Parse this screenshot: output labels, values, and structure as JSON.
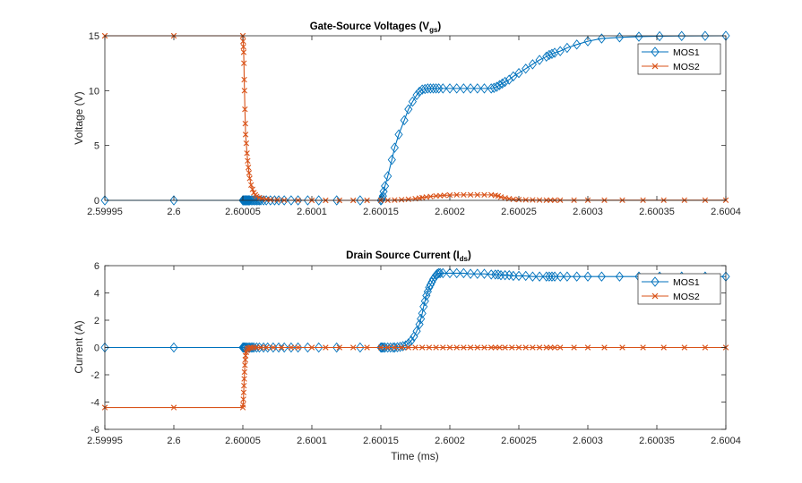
{
  "colors": {
    "mos1": "#0072BD",
    "mos2": "#D95319",
    "axis": "#262626"
  },
  "chart_data": [
    {
      "type": "line",
      "title": "Gate-Source  Voltages  (V",
      "title_sub": "gs",
      "title_end": ")",
      "xlabel": "",
      "ylabel": "Voltage (V)",
      "xlim": [
        2.59995,
        2.6004
      ],
      "ylim": [
        0,
        15
      ],
      "xticks": [
        2.59995,
        2.6,
        2.60005,
        2.6001,
        2.60015,
        2.6002,
        2.60025,
        2.6003,
        2.60035,
        2.6004
      ],
      "xtick_labels": [
        "2.59995",
        "2.6",
        "2.60005",
        "2.6001",
        "2.60015",
        "2.6002",
        "2.60025",
        "2.6003",
        "2.60035",
        "2.6004"
      ],
      "yticks": [
        0,
        5,
        10,
        15
      ],
      "ytick_labels": [
        "0",
        "5",
        "10",
        "15"
      ],
      "grid": false,
      "legend": "top-right",
      "series": [
        {
          "name": "MOS1",
          "marker": "diamond",
          "x": [
            2.59995,
            2.6,
            2.60005,
            2.6000505,
            2.600051,
            2.6000515,
            2.600052,
            2.6000525,
            2.600053,
            2.6000535,
            2.600054,
            2.6000545,
            2.600055,
            2.600056,
            2.600057,
            2.600058,
            2.600059,
            2.60006,
            2.600061,
            2.600062,
            2.600063,
            2.600065,
            2.600067,
            2.60007,
            2.600073,
            2.600076,
            2.60008,
            2.600085,
            2.60009,
            2.600097,
            2.600105,
            2.600118,
            2.600135,
            2.60015,
            2.6001505,
            2.600151,
            2.6001515,
            2.600152,
            2.600153,
            2.600155,
            2.600158,
            2.60016,
            2.600163,
            2.600167,
            2.60017,
            2.600173,
            2.600176,
            2.600178,
            2.60018,
            2.600182,
            2.600184,
            2.600186,
            2.600188,
            2.60019,
            2.600192,
            2.600195,
            2.6002,
            2.600205,
            2.60021,
            2.600215,
            2.60022,
            2.600225,
            2.60023,
            2.600232,
            2.600234,
            2.600236,
            2.600238,
            2.60024,
            2.600243,
            2.600246,
            2.60025,
            2.600255,
            2.60026,
            2.600265,
            2.60027,
            2.600272,
            2.600274,
            2.600276,
            2.60028,
            2.600285,
            2.600292,
            2.6003,
            2.60031,
            2.600323,
            2.600337,
            2.600352,
            2.600368,
            2.600385,
            2.6004
          ],
          "y": [
            0,
            0,
            0,
            0,
            0,
            0,
            0,
            0,
            0,
            0,
            0,
            0,
            0,
            0,
            0,
            0,
            0,
            0,
            0,
            0,
            0,
            0,
            0,
            0,
            0,
            0,
            0,
            0,
            0,
            0,
            0,
            0,
            0,
            0,
            0.05,
            0.2,
            0.4,
            0.8,
            1.3,
            2.2,
            3.7,
            4.8,
            6.0,
            7.3,
            8.3,
            9.0,
            9.6,
            9.9,
            10.1,
            10.15,
            10.2,
            10.2,
            10.2,
            10.2,
            10.2,
            10.2,
            10.2,
            10.2,
            10.2,
            10.2,
            10.2,
            10.2,
            10.2,
            10.25,
            10.35,
            10.5,
            10.65,
            10.8,
            11.0,
            11.3,
            11.6,
            12.0,
            12.4,
            12.8,
            13.1,
            13.25,
            13.35,
            13.45,
            13.6,
            13.9,
            14.2,
            14.5,
            14.75,
            14.85,
            14.92,
            14.96,
            14.98,
            14.99,
            15.0
          ]
        },
        {
          "name": "MOS2",
          "marker": "x",
          "x": [
            2.59995,
            2.6,
            2.60005,
            2.6000502,
            2.6000504,
            2.6000506,
            2.6000508,
            2.600051,
            2.6000512,
            2.6000515,
            2.6000518,
            2.600052,
            2.6000525,
            2.600053,
            2.6000535,
            2.600054,
            2.6000545,
            2.600055,
            2.600056,
            2.600057,
            2.600058,
            2.600059,
            2.60006,
            2.600062,
            2.600064,
            2.600067,
            2.60007,
            2.600075,
            2.60008,
            2.60009,
            2.6001,
            2.60011,
            2.60012,
            2.60013,
            2.60014,
            2.60015,
            2.600155,
            2.60016,
            2.600165,
            2.60017,
            2.600175,
            2.600178,
            2.60018,
            2.600183,
            2.600186,
            2.60019,
            2.600193,
            2.600196,
            2.6002,
            2.600205,
            2.60021,
            2.600215,
            2.60022,
            2.600225,
            2.60023,
            2.600233,
            2.600235,
            2.600237,
            2.60024,
            2.600243,
            2.600246,
            2.60025,
            2.600255,
            2.60026,
            2.600265,
            2.60027,
            2.600273,
            2.600276,
            2.60028,
            2.60029,
            2.6003,
            2.600312,
            2.600325,
            2.60034,
            2.600355,
            2.60037,
            2.600385,
            2.6004
          ],
          "y": [
            15,
            15,
            15,
            14.5,
            14.0,
            13.5,
            12.5,
            11.0,
            10.0,
            8.3,
            7.0,
            6.0,
            5.2,
            4.3,
            3.6,
            3.0,
            2.5,
            2.0,
            1.4,
            1.0,
            0.7,
            0.5,
            0.35,
            0.25,
            0.17,
            0.1,
            0.06,
            0.04,
            0.02,
            0.01,
            0,
            0,
            0,
            0,
            0,
            0,
            0.01,
            0.03,
            0.06,
            0.1,
            0.15,
            0.2,
            0.25,
            0.3,
            0.35,
            0.4,
            0.42,
            0.45,
            0.48,
            0.5,
            0.5,
            0.5,
            0.5,
            0.5,
            0.5,
            0.45,
            0.4,
            0.3,
            0.22,
            0.15,
            0.1,
            0.07,
            0.05,
            0.04,
            0.03,
            0.02,
            0.02,
            0.02,
            0.02,
            0.02,
            0.02,
            0.02,
            0.02,
            0.02,
            0.02,
            0.02,
            0.02,
            0.02
          ]
        }
      ]
    },
    {
      "type": "line",
      "title": "Drain Source  Current  (I",
      "title_sub": "ds",
      "title_end": ")",
      "xlabel": "Time (ms)",
      "ylabel": "Current (A)",
      "xlim": [
        2.59995,
        2.6004
      ],
      "ylim": [
        -6,
        6
      ],
      "xticks": [
        2.59995,
        2.6,
        2.60005,
        2.6001,
        2.60015,
        2.6002,
        2.60025,
        2.6003,
        2.60035,
        2.6004
      ],
      "xtick_labels": [
        "2.59995",
        "2.6",
        "2.60005",
        "2.6001",
        "2.60015",
        "2.6002",
        "2.60025",
        "2.6003",
        "2.60035",
        "2.6004"
      ],
      "yticks": [
        -6,
        -4,
        -2,
        0,
        2,
        4,
        6
      ],
      "ytick_labels": [
        "-6",
        "-4",
        "-2",
        "0",
        "2",
        "4",
        "6"
      ],
      "grid": false,
      "legend": "top-right",
      "series": [
        {
          "name": "MOS1",
          "marker": "diamond",
          "x": [
            2.59995,
            2.6,
            2.60005,
            2.6000505,
            2.600051,
            2.6000515,
            2.600052,
            2.600053,
            2.600054,
            2.600055,
            2.600056,
            2.600057,
            2.600058,
            2.60006,
            2.600062,
            2.600065,
            2.600068,
            2.600072,
            2.600076,
            2.60008,
            2.600085,
            2.60009,
            2.600097,
            2.600105,
            2.600118,
            2.600135,
            2.60015,
            2.6001505,
            2.600151,
            2.600152,
            2.600153,
            2.600155,
            2.600157,
            2.600159,
            2.60016,
            2.600162,
            2.600164,
            2.600166,
            2.600168,
            2.60017,
            2.600172,
            2.600174,
            2.600176,
            2.600178,
            2.600179,
            2.60018,
            2.600181,
            2.600182,
            2.600183,
            2.600184,
            2.600185,
            2.600186,
            2.600187,
            2.600188,
            2.600189,
            2.60019,
            2.600191,
            2.600192,
            2.600193,
            2.600195,
            2.6002,
            2.600205,
            2.60021,
            2.600215,
            2.60022,
            2.600225,
            2.60023,
            2.600233,
            2.600235,
            2.600237,
            2.60024,
            2.600243,
            2.600246,
            2.60025,
            2.600255,
            2.60026,
            2.600265,
            2.60027,
            2.600272,
            2.600274,
            2.600276,
            2.60028,
            2.600285,
            2.600292,
            2.6003,
            2.60031,
            2.600323,
            2.600337,
            2.600352,
            2.600368,
            2.600385,
            2.6004
          ],
          "y": [
            0,
            0,
            0,
            0,
            0,
            0,
            0,
            0,
            0,
            0,
            0,
            0,
            0,
            0,
            0,
            0,
            0,
            0,
            0,
            0,
            0,
            0,
            0,
            0,
            0,
            0,
            0,
            0,
            0,
            0,
            0,
            0,
            0,
            0,
            0,
            0.02,
            0.05,
            0.1,
            0.15,
            0.3,
            0.5,
            0.8,
            1.2,
            1.7,
            2.1,
            2.5,
            3.0,
            3.4,
            3.8,
            4.1,
            4.4,
            4.6,
            4.8,
            5.0,
            5.15,
            5.3,
            5.4,
            5.45,
            5.45,
            5.45,
            5.45,
            5.45,
            5.45,
            5.4,
            5.4,
            5.4,
            5.35,
            5.35,
            5.35,
            5.3,
            5.3,
            5.3,
            5.25,
            5.25,
            5.25,
            5.2,
            5.2,
            5.2,
            5.2,
            5.2,
            5.2,
            5.2,
            5.2,
            5.2,
            5.2,
            5.2,
            5.2,
            5.2,
            5.2,
            5.2,
            5.2,
            5.2
          ]
        },
        {
          "name": "MOS2",
          "marker": "x",
          "x": [
            2.59995,
            2.6,
            2.60005,
            2.6000502,
            2.6000504,
            2.6000506,
            2.6000508,
            2.600051,
            2.6000512,
            2.6000515,
            2.6000518,
            2.600052,
            2.6000525,
            2.600053,
            2.6000535,
            2.600054,
            2.600055,
            2.600056,
            2.600058,
            2.60006,
            2.600063,
            2.600067,
            2.600072,
            2.600078,
            2.600085,
            2.60009,
            2.6001,
            2.60011,
            2.60012,
            2.60013,
            2.60014,
            2.60015,
            2.600155,
            2.60016,
            2.600165,
            2.60017,
            2.600175,
            2.60018,
            2.600185,
            2.60019,
            2.600195,
            2.6002,
            2.600205,
            2.60021,
            2.600215,
            2.60022,
            2.600225,
            2.60023,
            2.600233,
            2.600236,
            2.60024,
            2.600245,
            2.60025,
            2.600255,
            2.60026,
            2.600265,
            2.60027,
            2.600273,
            2.600276,
            2.60028,
            2.60029,
            2.6003,
            2.600312,
            2.600325,
            2.60034,
            2.600355,
            2.60037,
            2.600385,
            2.6004
          ],
          "y": [
            -4.4,
            -4.4,
            -4.4,
            -4.2,
            -3.8,
            -3.3,
            -2.8,
            -2.3,
            -1.8,
            -1.3,
            -0.9,
            -0.6,
            -0.35,
            -0.2,
            -0.1,
            -0.05,
            -0.02,
            0,
            0,
            0,
            0,
            0,
            0,
            0,
            0,
            0,
            0,
            0,
            0,
            0,
            0,
            0,
            0,
            0,
            0,
            0,
            0,
            0,
            0,
            0,
            0,
            0,
            0,
            0,
            0,
            0,
            0,
            0,
            0,
            0,
            0,
            0,
            0,
            0,
            0,
            0,
            0,
            0,
            0,
            0,
            0,
            0,
            0,
            0,
            0,
            0,
            0,
            0,
            0
          ]
        }
      ]
    }
  ]
}
